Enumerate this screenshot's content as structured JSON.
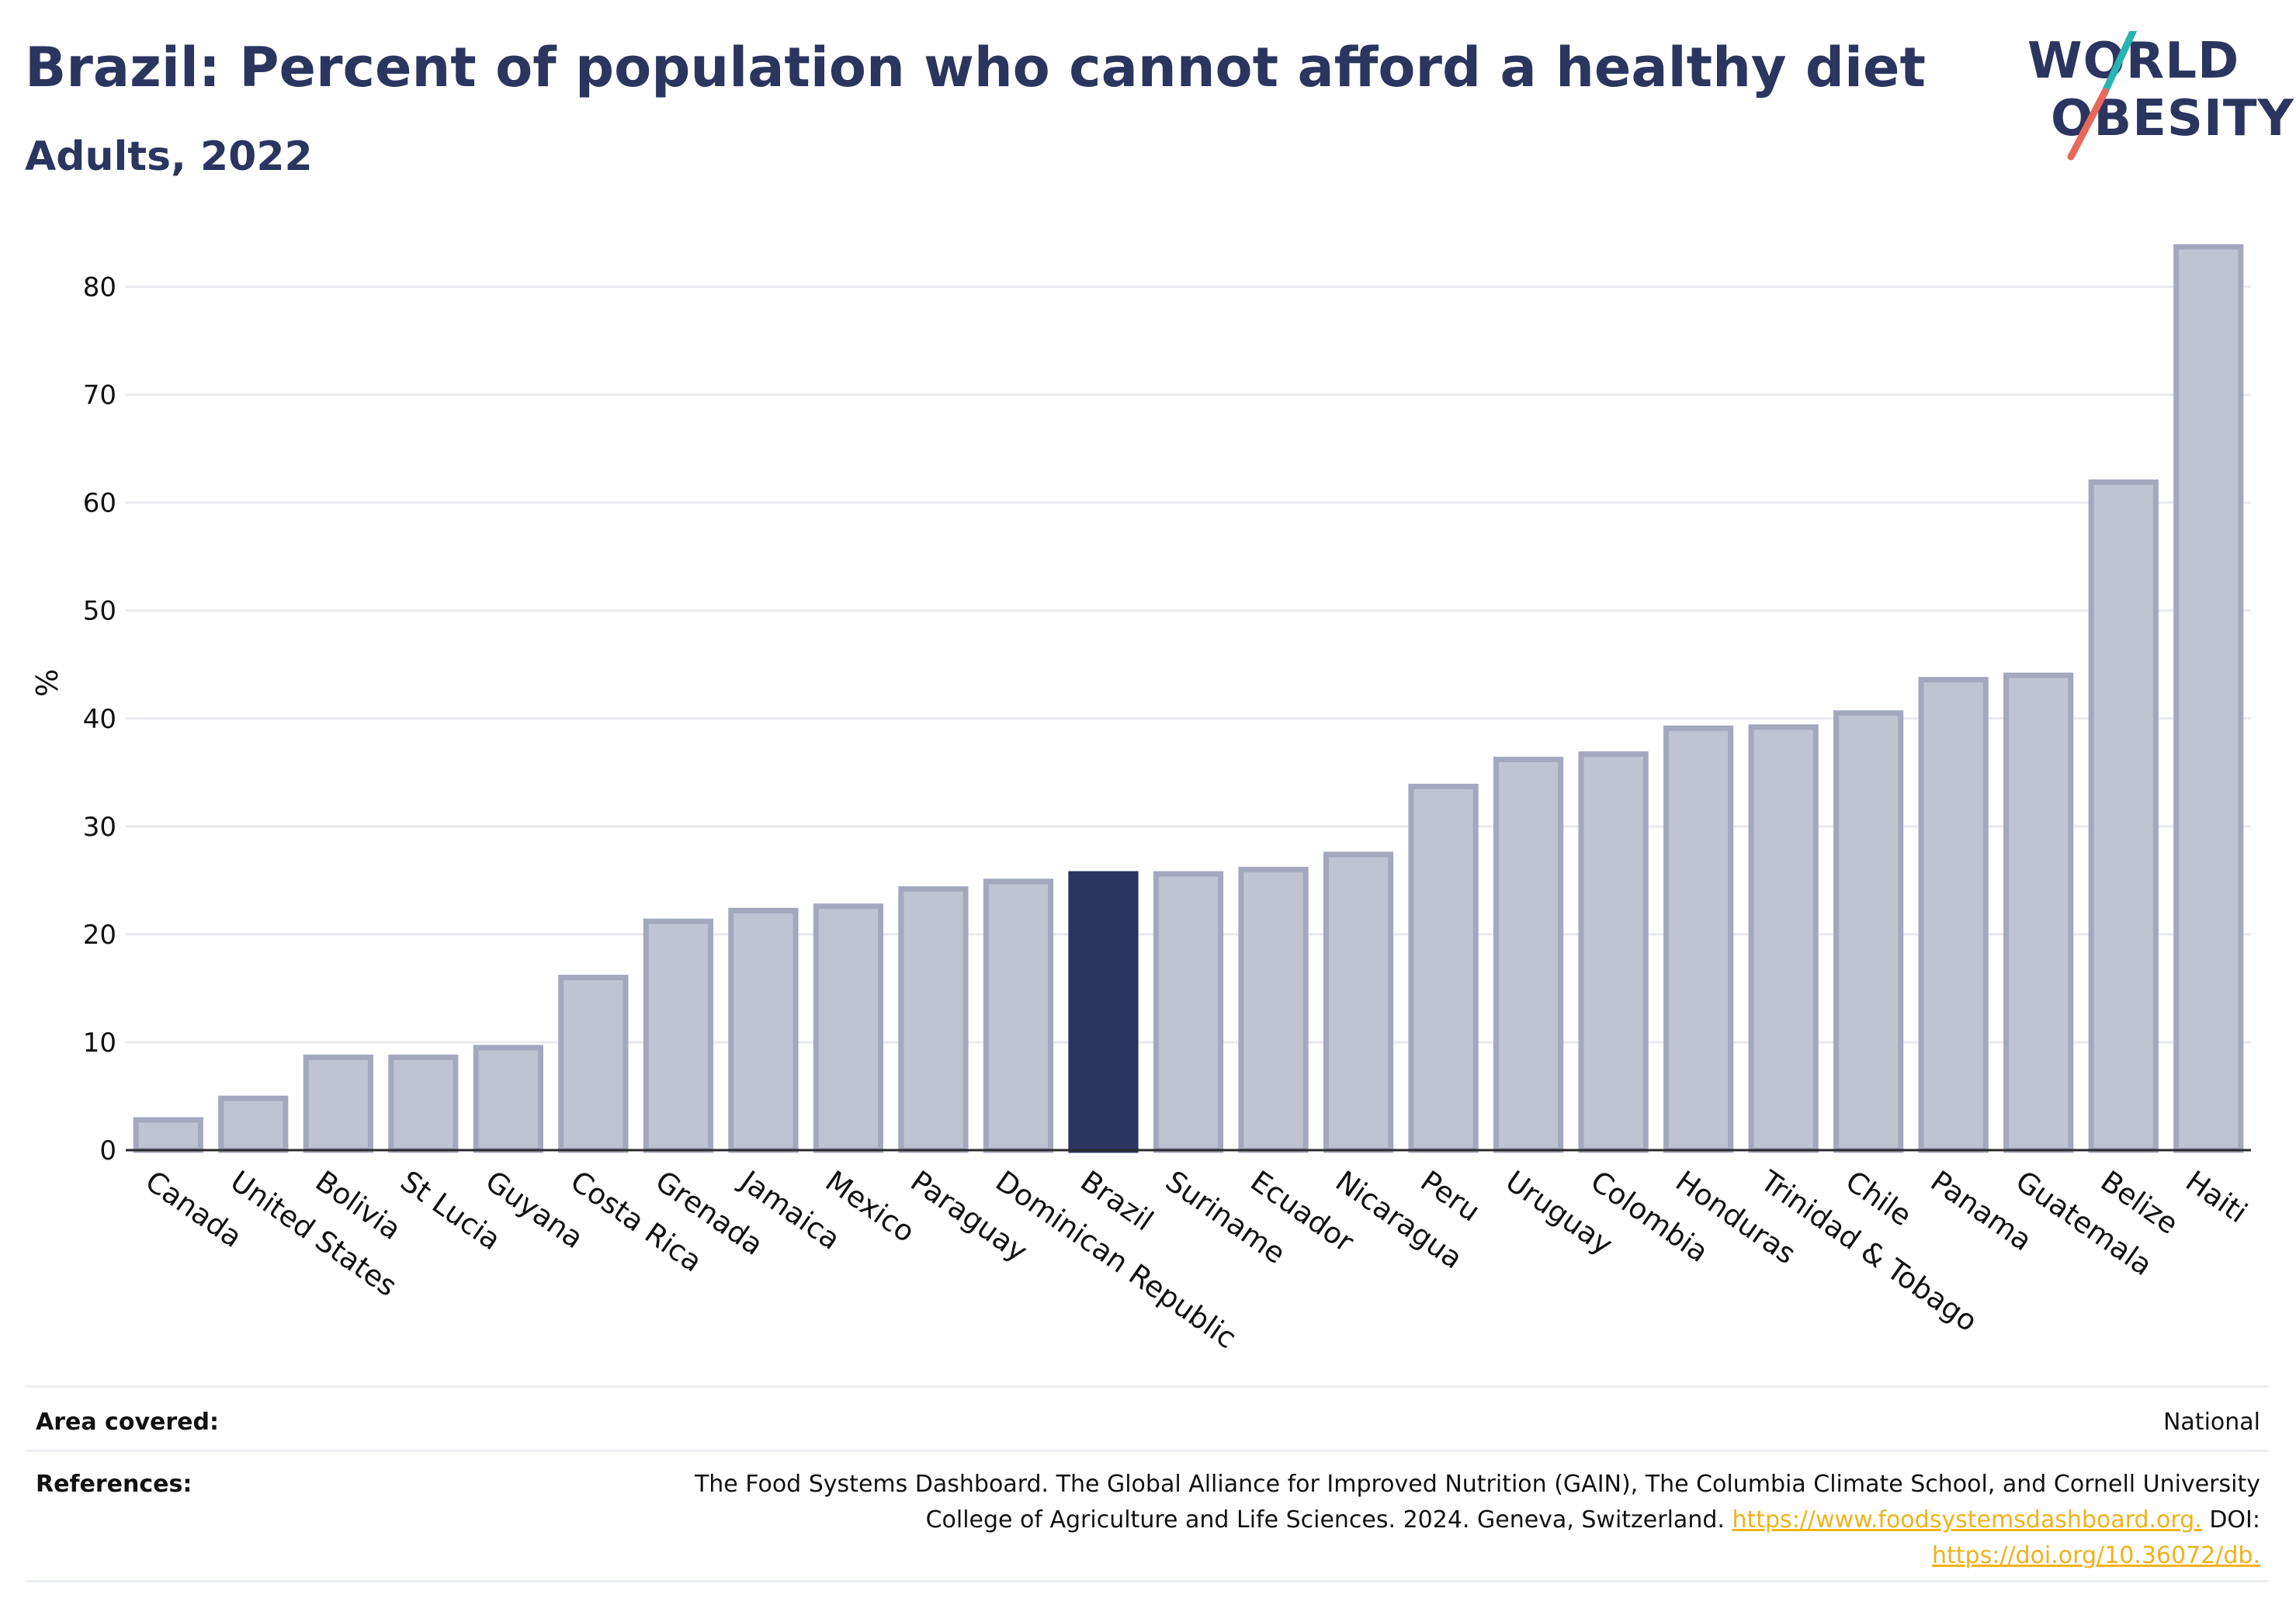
{
  "header": {
    "title": "Brazil: Percent of population who cannot afford a healthy diet",
    "subtitle": "Adults, 2022"
  },
  "logo": {
    "line1": "WORLD",
    "line2": "OBESITY",
    "slash_colors": [
      "#2ab3b0",
      "#e8695a"
    ]
  },
  "colors": {
    "bar": "#c0c3d1",
    "bar_stroke": "#a3a8bd",
    "highlight": "#2b3560",
    "text": "#2b3560",
    "link": "#f0b21b"
  },
  "chart_data": {
    "type": "bar",
    "ylabel": "%",
    "ylim": [
      0,
      85
    ],
    "yticks": [
      0,
      10,
      20,
      30,
      40,
      50,
      60,
      70,
      80
    ],
    "grid": true,
    "highlight": "Brazil",
    "categories": [
      "Canada",
      "United States",
      "Bolivia",
      "St Lucia",
      "Guyana",
      "Costa Rica",
      "Grenada",
      "Jamaica",
      "Mexico",
      "Paraguay",
      "Dominican Republic",
      "Brazil",
      "Suriname",
      "Ecuador",
      "Nicaragua",
      "Peru",
      "Uruguay",
      "Colombia",
      "Honduras",
      "Trinidad & Tobago",
      "Chile",
      "Panama",
      "Guatemala",
      "Belize",
      "Haiti"
    ],
    "values": [
      2.8,
      4.8,
      8.6,
      8.6,
      9.5,
      16.0,
      21.2,
      22.2,
      22.6,
      24.2,
      24.9,
      25.6,
      25.6,
      26.0,
      27.4,
      33.7,
      36.2,
      36.7,
      39.1,
      39.2,
      40.5,
      43.6,
      44.0,
      61.9,
      83.7
    ]
  },
  "footer": {
    "area_label": "Area covered:",
    "area_value": "National",
    "references_label": "References:",
    "references_text": "The Food Systems Dashboard. The Global Alliance for Improved Nutrition (GAIN), The Columbia Climate School, and Cornell University College of Agriculture and Life Sciences. 2024. Geneva, Switzerland.",
    "references_link1": "https://www.foodsystemsdashboard.org.",
    "references_doi_label": "DOI:",
    "references_link2": "https://doi.org/10.36072/db."
  }
}
